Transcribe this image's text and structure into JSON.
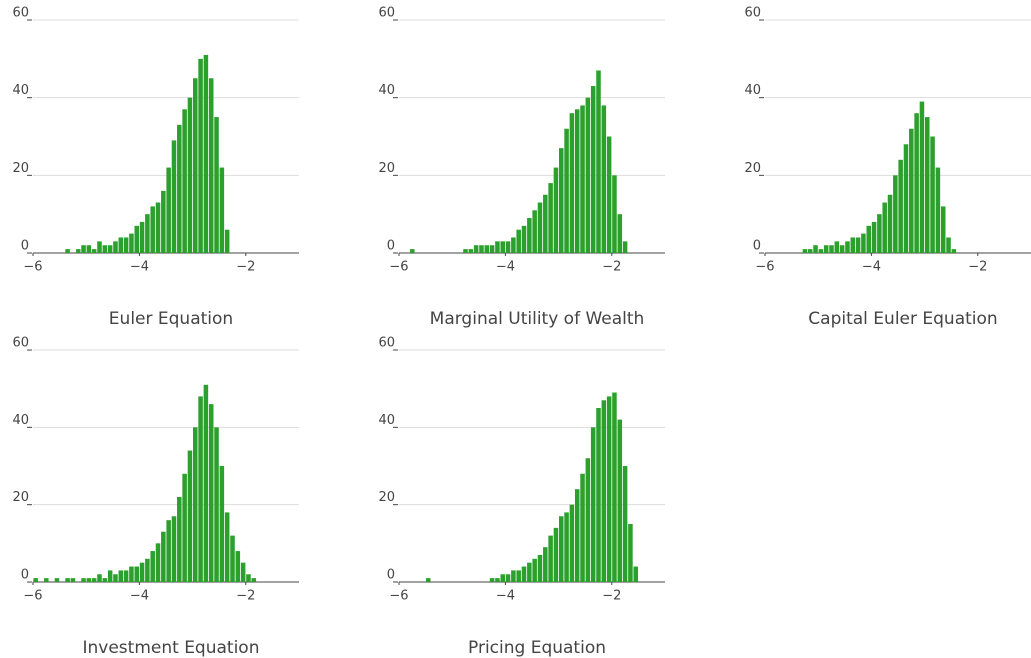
{
  "chart_data": [
    {
      "type": "histogram",
      "title": "Euler Equation",
      "color": "#2ca02c",
      "grid": true,
      "bins": [
        -5.4,
        -5.3,
        -5.2,
        -5.1,
        -5.0,
        -4.9,
        -4.8,
        -4.7,
        -4.6,
        -4.5,
        -4.4,
        -4.3,
        -4.2,
        -4.1,
        -4.0,
        -3.9,
        -3.8,
        -3.7,
        -3.6,
        -3.5,
        -3.4,
        -3.3,
        -3.2,
        -3.1,
        -3.0,
        -2.9,
        -2.8,
        -2.7,
        -2.6,
        -2.5,
        -2.4,
        -2.3
      ],
      "values": [
        1,
        0,
        1,
        2,
        2,
        1,
        3,
        2,
        2,
        3,
        4,
        4,
        5,
        7,
        8,
        10,
        12,
        13,
        16,
        22,
        29,
        33,
        37,
        40,
        45,
        50,
        51,
        45,
        35,
        22,
        6
      ],
      "xlim": [
        -6,
        -1
      ],
      "ylim": [
        0,
        60
      ],
      "yticks": [
        0,
        20,
        40,
        60
      ],
      "xticks": [
        {
          "value": -6,
          "label": "−6"
        },
        {
          "value": -4,
          "label": "−4"
        },
        {
          "value": -2,
          "label": "−2"
        }
      ]
    },
    {
      "type": "histogram",
      "title": "Marginal Utility of Wealth",
      "color": "#2ca02c",
      "grid": true,
      "bins": [
        -5.8,
        -5.7,
        -5.6,
        -5.5,
        -5.4,
        -5.3,
        -5.2,
        -5.1,
        -5.0,
        -4.9,
        -4.8,
        -4.7,
        -4.6,
        -4.5,
        -4.4,
        -4.3,
        -4.2,
        -4.1,
        -4.0,
        -3.9,
        -3.8,
        -3.7,
        -3.6,
        -3.5,
        -3.4,
        -3.3,
        -3.2,
        -3.1,
        -3.0,
        -2.9,
        -2.8,
        -2.7,
        -2.6,
        -2.5,
        -2.4,
        -2.3,
        -2.2,
        -2.1,
        -2.0,
        -1.9,
        -1.8,
        -1.7
      ],
      "values": [
        1,
        0,
        0,
        0,
        0,
        0,
        0,
        0,
        0,
        0,
        1,
        1,
        2,
        2,
        2,
        2,
        3,
        3,
        3,
        4,
        6,
        7,
        9,
        11,
        13,
        15,
        18,
        22,
        27,
        32,
        36,
        37,
        38,
        40,
        43,
        47,
        38,
        30,
        20,
        10,
        3
      ],
      "xlim": [
        -6,
        -1
      ],
      "ylim": [
        0,
        60
      ],
      "yticks": [
        0,
        20,
        40,
        60
      ],
      "xticks": [
        {
          "value": -6,
          "label": "−6"
        },
        {
          "value": -4,
          "label": "−4"
        },
        {
          "value": -2,
          "label": "−2"
        }
      ]
    },
    {
      "type": "histogram",
      "title": "Capital Euler Equation",
      "color": "#2ca02c",
      "grid": true,
      "bins": [
        -5.3,
        -5.2,
        -5.1,
        -5.0,
        -4.9,
        -4.8,
        -4.7,
        -4.6,
        -4.5,
        -4.4,
        -4.3,
        -4.2,
        -4.1,
        -4.0,
        -3.9,
        -3.8,
        -3.7,
        -3.6,
        -3.5,
        -3.4,
        -3.3,
        -3.2,
        -3.1,
        -3.0,
        -2.9,
        -2.8,
        -2.7,
        -2.6,
        -2.5,
        -2.4
      ],
      "values": [
        1,
        1,
        2,
        1,
        2,
        2,
        3,
        2,
        3,
        4,
        4,
        5,
        7,
        8,
        10,
        13,
        15,
        20,
        24,
        28,
        32,
        36,
        39,
        35,
        30,
        22,
        12,
        4,
        1
      ],
      "xlim": [
        -6,
        -1
      ],
      "ylim": [
        0,
        60
      ],
      "yticks": [
        0,
        20,
        40,
        60
      ],
      "xticks": [
        {
          "value": -6,
          "label": "−6"
        },
        {
          "value": -4,
          "label": "−4"
        },
        {
          "value": -2,
          "label": "−2"
        }
      ]
    },
    {
      "type": "histogram",
      "title": "Investment Equation",
      "color": "#2ca02c",
      "grid": true,
      "bins": [
        -6.0,
        -5.9,
        -5.8,
        -5.7,
        -5.6,
        -5.5,
        -5.4,
        -5.3,
        -5.2,
        -5.1,
        -5.0,
        -4.9,
        -4.8,
        -4.7,
        -4.6,
        -4.5,
        -4.4,
        -4.3,
        -4.2,
        -4.1,
        -4.0,
        -3.9,
        -3.8,
        -3.7,
        -3.6,
        -3.5,
        -3.4,
        -3.3,
        -3.2,
        -3.1,
        -3.0,
        -2.9,
        -2.8,
        -2.7,
        -2.6,
        -2.5,
        -2.4,
        -2.3,
        -2.2,
        -2.1,
        -2.0,
        -1.9,
        -1.8
      ],
      "values": [
        1,
        0,
        1,
        0,
        1,
        0,
        1,
        1,
        0,
        1,
        1,
        1,
        2,
        1,
        3,
        2,
        3,
        3,
        4,
        4,
        5,
        6,
        8,
        10,
        13,
        16,
        17,
        22,
        28,
        34,
        40,
        48,
        51,
        46,
        40,
        30,
        18,
        12,
        8,
        5,
        2,
        1
      ],
      "xlim": [
        -6,
        -1
      ],
      "ylim": [
        0,
        60
      ],
      "yticks": [
        0,
        20,
        40,
        60
      ],
      "xticks": [
        {
          "value": -6,
          "label": "−6"
        },
        {
          "value": -4,
          "label": "−4"
        },
        {
          "value": -2,
          "label": "−2"
        }
      ]
    },
    {
      "type": "histogram",
      "title": "Pricing Equation",
      "color": "#2ca02c",
      "grid": true,
      "bins": [
        -5.5,
        -5.4,
        -5.3,
        -5.2,
        -5.1,
        -5.0,
        -4.9,
        -4.8,
        -4.7,
        -4.6,
        -4.5,
        -4.4,
        -4.3,
        -4.2,
        -4.1,
        -4.0,
        -3.9,
        -3.8,
        -3.7,
        -3.6,
        -3.5,
        -3.4,
        -3.3,
        -3.2,
        -3.1,
        -3.0,
        -2.9,
        -2.8,
        -2.7,
        -2.6,
        -2.5,
        -2.4,
        -2.3,
        -2.2,
        -2.1,
        -2.0,
        -1.9,
        -1.8,
        -1.7,
        -1.6,
        -1.5
      ],
      "values": [
        1,
        0,
        0,
        0,
        0,
        0,
        0,
        0,
        0,
        0,
        0,
        0,
        1,
        1,
        2,
        2,
        3,
        3,
        4,
        5,
        6,
        7,
        9,
        12,
        14,
        17,
        18,
        20,
        24,
        28,
        32,
        40,
        45,
        47,
        48,
        49,
        42,
        30,
        15,
        4
      ],
      "xlim": [
        -6,
        -1
      ],
      "ylim": [
        0,
        60
      ],
      "yticks": [
        0,
        20,
        40,
        60
      ],
      "xticks": [
        {
          "value": -6,
          "label": "−6"
        },
        {
          "value": -4,
          "label": "−4"
        },
        {
          "value": -2,
          "label": "−2"
        }
      ]
    }
  ]
}
